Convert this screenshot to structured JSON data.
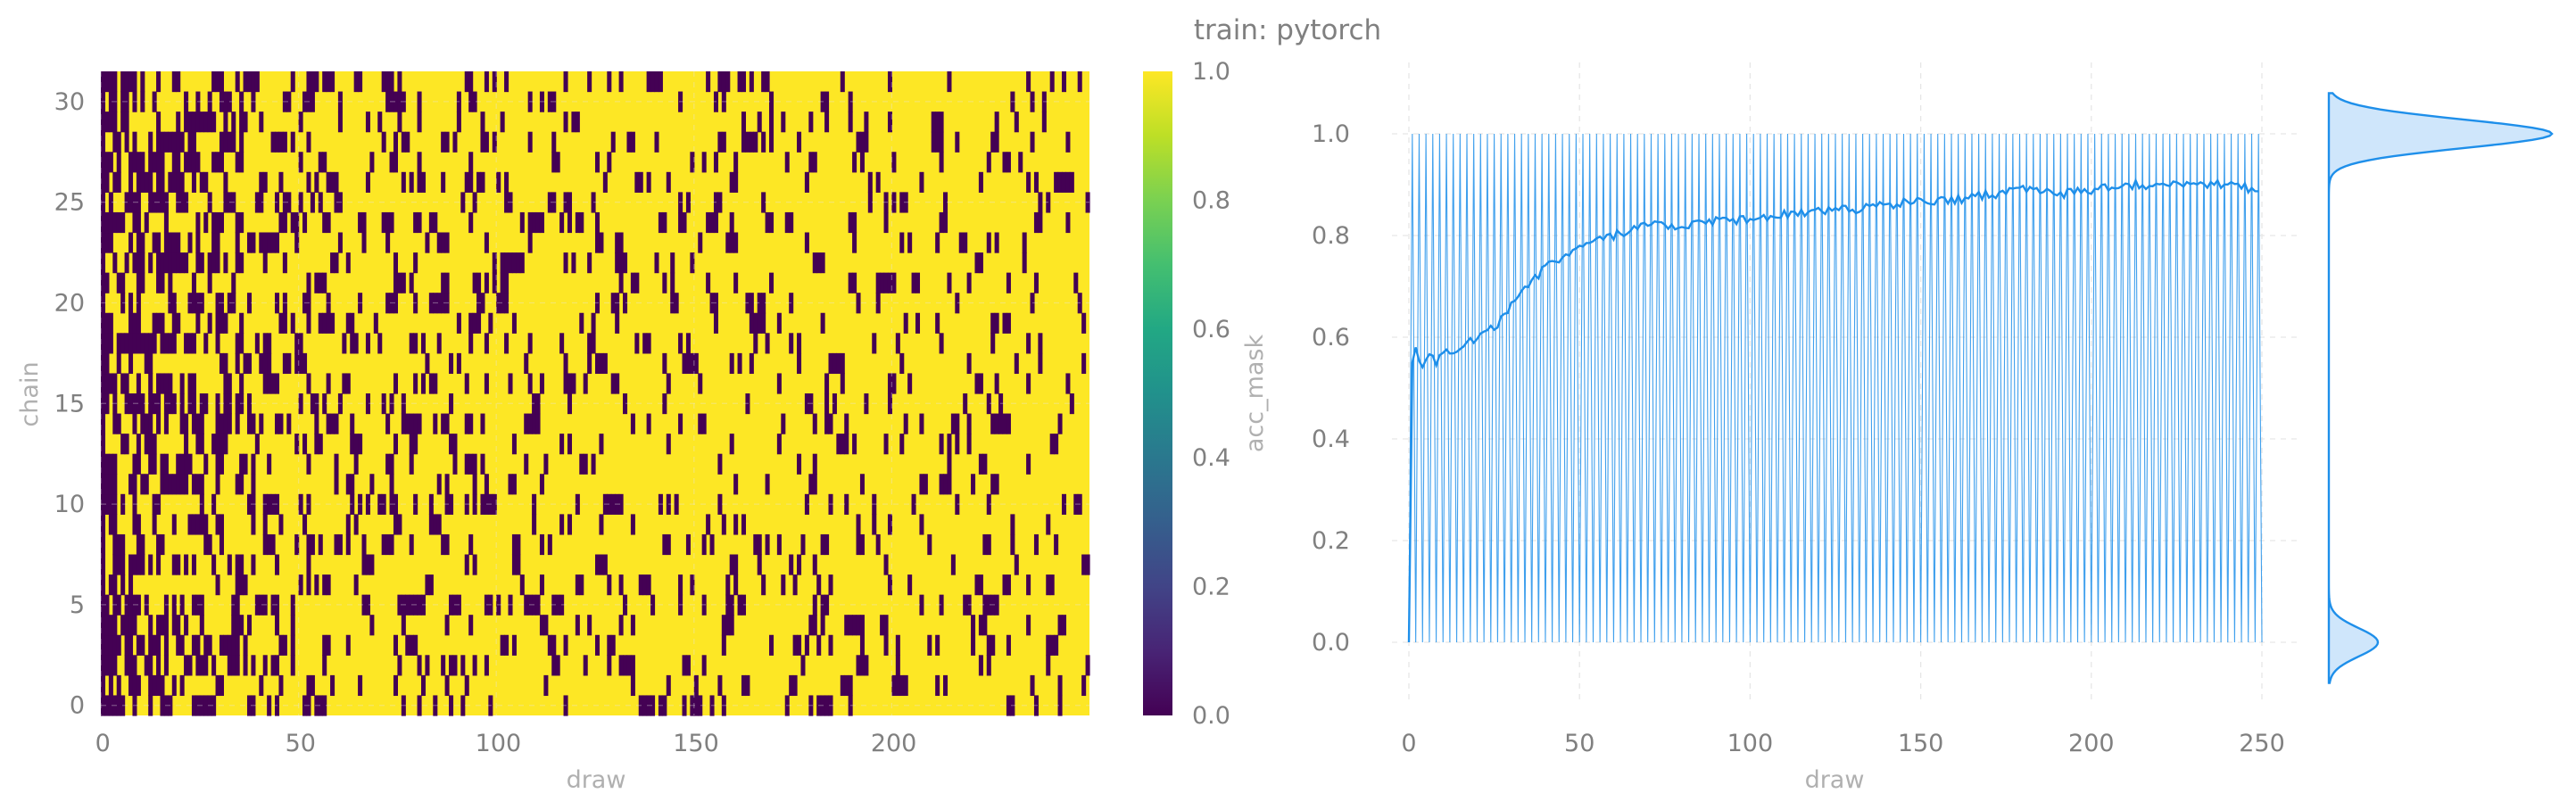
{
  "figure": {
    "title": "train: pytorch"
  },
  "colors": {
    "line": "#1e8fea",
    "kde_fill": "#cfe6fb",
    "text": "#808080",
    "label": "#b0b0b0",
    "grid": "#e6e6e6"
  },
  "chart_data": [
    {
      "type": "heatmap",
      "name": "acc_mask heatmap",
      "xlabel": "draw",
      "ylabel": "chain",
      "xlim": [
        0,
        250
      ],
      "ylim": [
        0,
        32
      ],
      "xticks": [
        "0",
        "50",
        "100",
        "150",
        "200"
      ],
      "yticks": [
        "0",
        "5",
        "10",
        "15",
        "20",
        "25",
        "30"
      ],
      "n_chains": 32,
      "n_draws": 250,
      "acceptance_rate_by_draw": {
        "draw": [
          0,
          1,
          3,
          5,
          10,
          20,
          30,
          40,
          50,
          60,
          70,
          80,
          100,
          130,
          160,
          200,
          249
        ],
        "rate": [
          0.0,
          0.5,
          0.52,
          0.55,
          0.57,
          0.62,
          0.69,
          0.75,
          0.79,
          0.81,
          0.83,
          0.83,
          0.84,
          0.86,
          0.88,
          0.9,
          0.9
        ]
      },
      "colorbar": {
        "label": "acc_mask",
        "range": [
          0.0,
          1.0
        ],
        "ticks": [
          "0.0",
          "0.2",
          "0.4",
          "0.6",
          "0.8",
          "1.0"
        ],
        "colormap": "viridis"
      }
    },
    {
      "type": "line",
      "name": "acc_mask trace",
      "xlabel": "draw",
      "ylabel": "",
      "xlim": [
        0,
        250
      ],
      "ylim": [
        0.0,
        1.0
      ],
      "xticks": [
        "0",
        "50",
        "100",
        "150",
        "200",
        "250"
      ],
      "yticks": [
        "0.0",
        "0.2",
        "0.4",
        "0.6",
        "0.8",
        "1.0"
      ],
      "grid": true,
      "series": [
        {
          "role": "per-draw samples (all chains)",
          "note": "oscillates between 0.0 and 1.0 at every draw"
        },
        {
          "role": "running mean",
          "x": [
            0,
            1,
            2,
            4,
            6,
            8,
            10,
            15,
            20,
            25,
            30,
            35,
            40,
            45,
            50,
            55,
            60,
            65,
            70,
            80,
            90,
            100,
            110,
            120,
            130,
            140,
            150,
            160,
            170,
            180,
            190,
            200,
            210,
            220,
            230,
            240,
            249
          ],
          "y": [
            0.0,
            0.55,
            0.58,
            0.54,
            0.56,
            0.55,
            0.57,
            0.58,
            0.6,
            0.62,
            0.66,
            0.7,
            0.74,
            0.76,
            0.78,
            0.79,
            0.8,
            0.81,
            0.82,
            0.82,
            0.83,
            0.83,
            0.84,
            0.85,
            0.85,
            0.86,
            0.87,
            0.87,
            0.88,
            0.89,
            0.88,
            0.89,
            0.9,
            0.9,
            0.9,
            0.9,
            0.89
          ]
        }
      ],
      "marginal_kde": {
        "orientation": "vertical",
        "modes": [
          {
            "at": 1.0,
            "relative_height": 1.0
          },
          {
            "at": 0.0,
            "relative_height": 0.22
          }
        ]
      }
    }
  ]
}
